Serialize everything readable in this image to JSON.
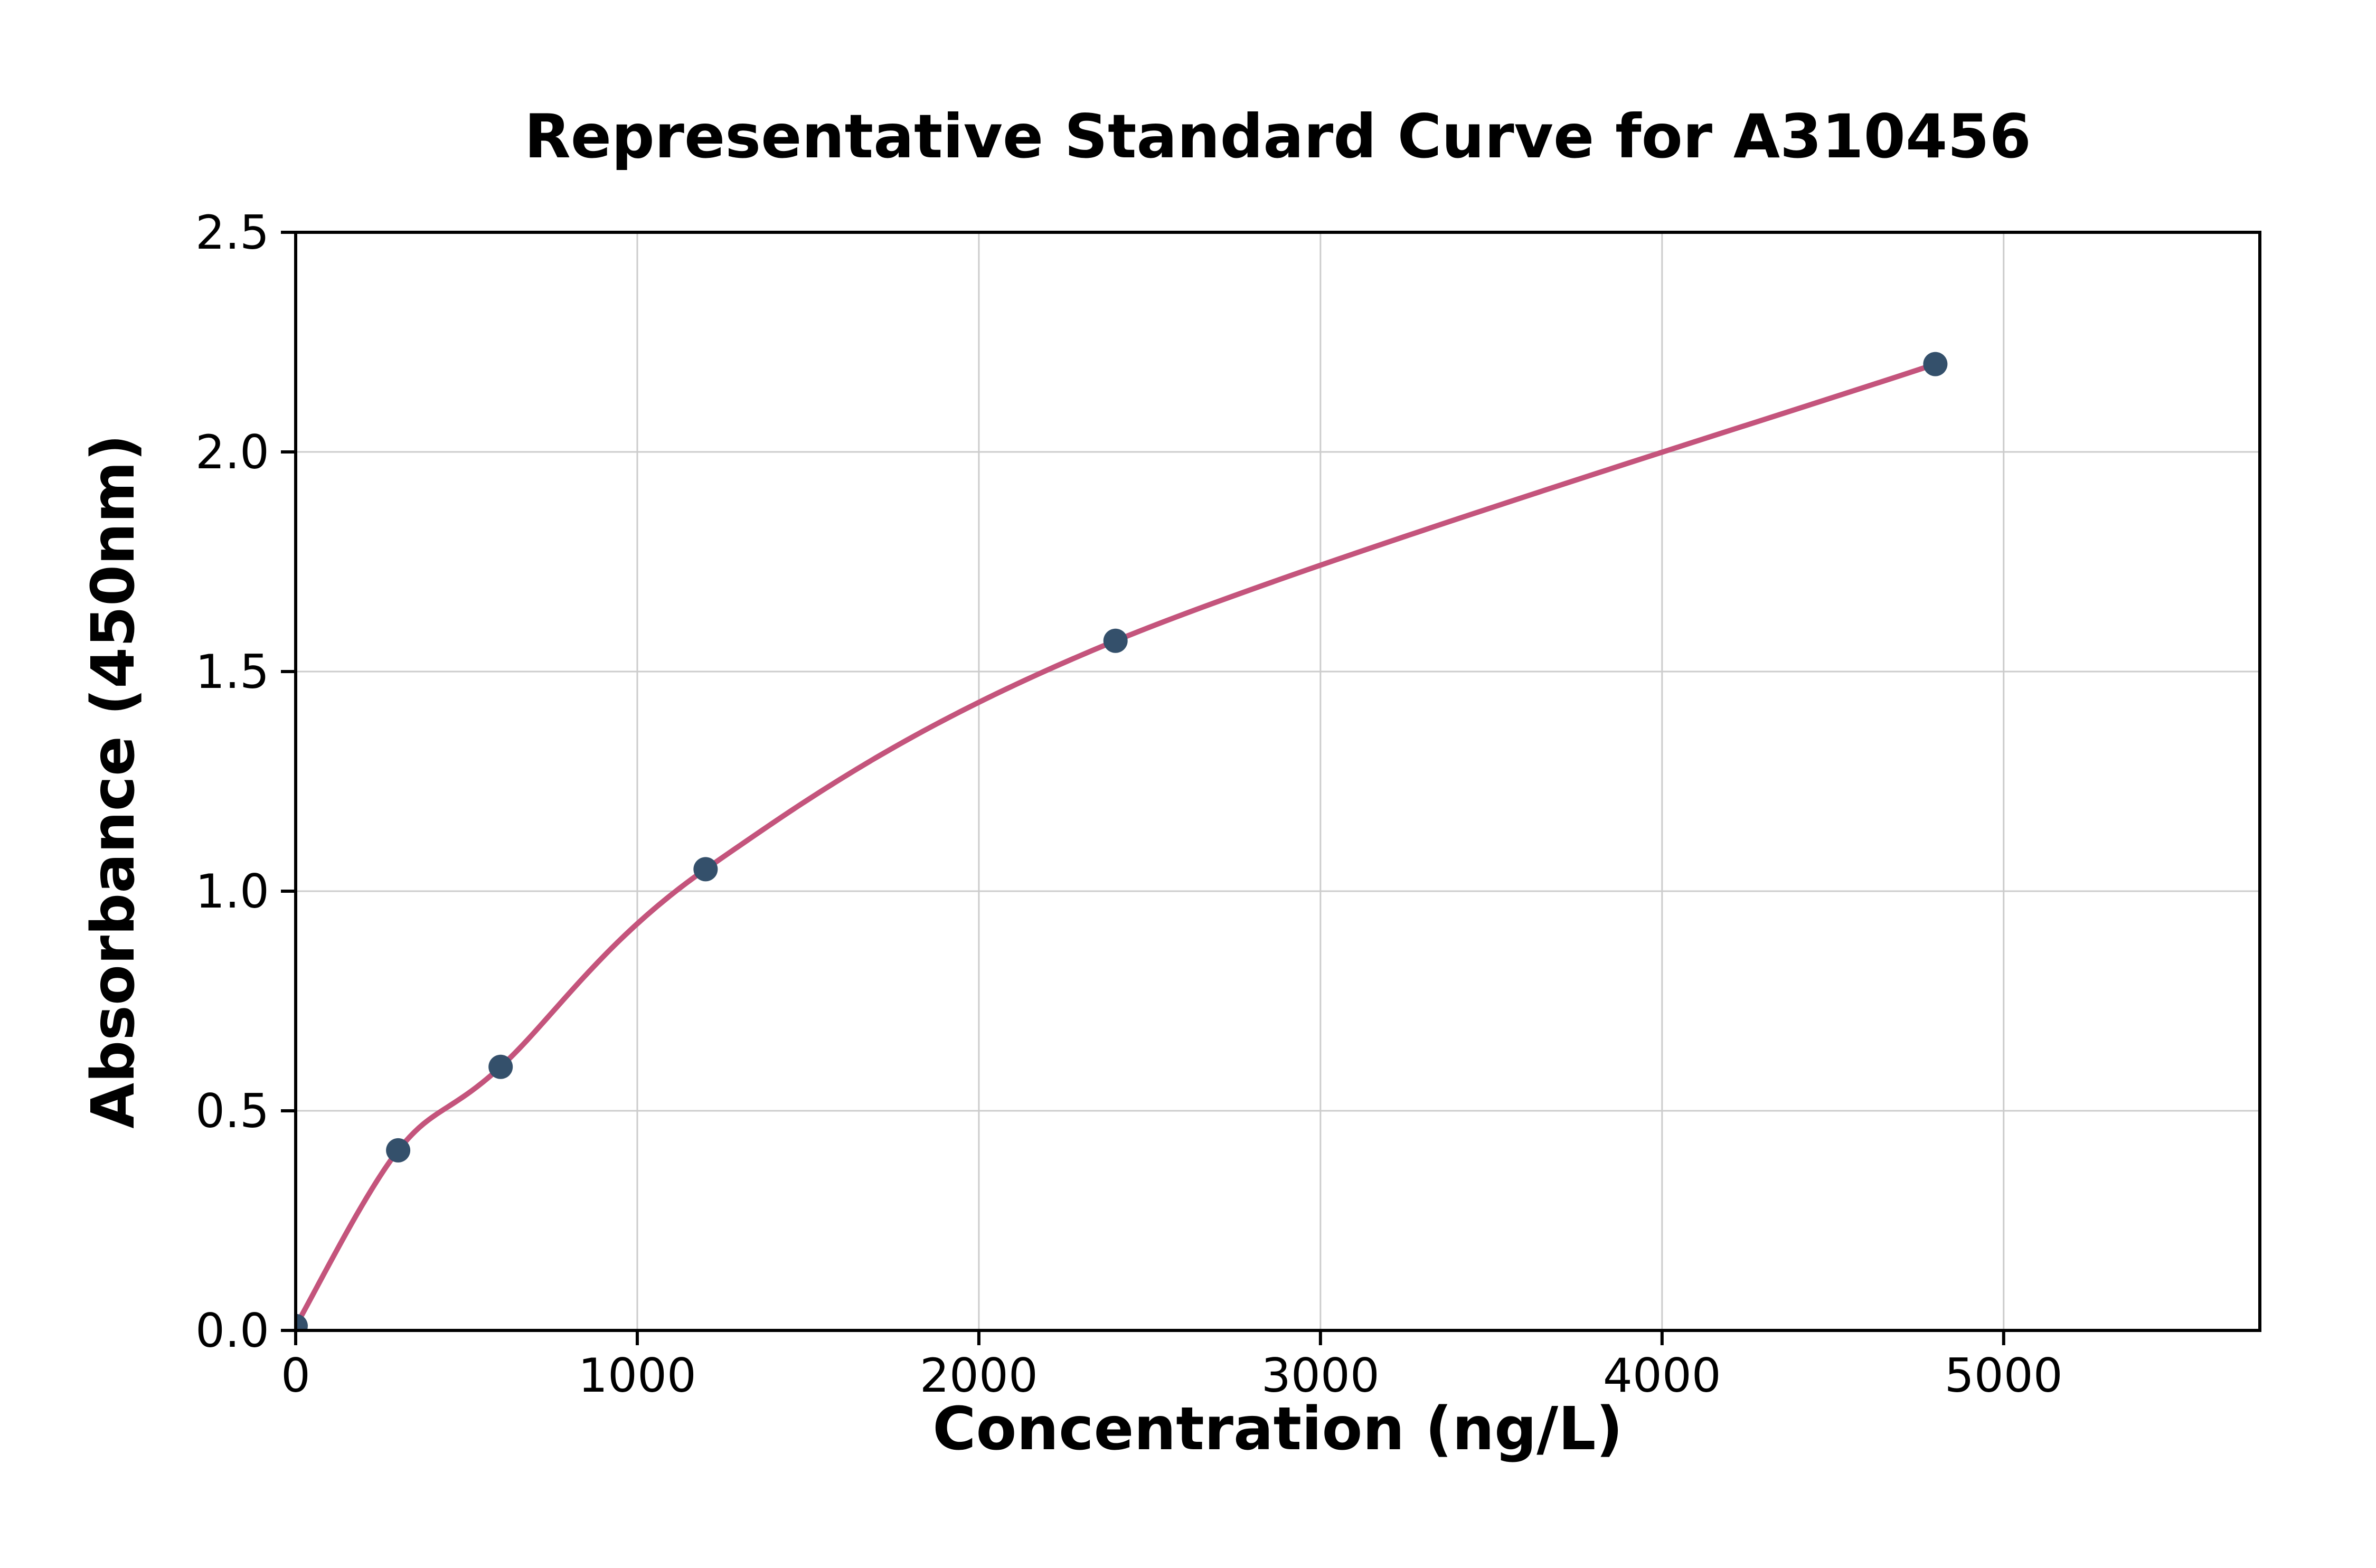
{
  "chart_data": {
    "type": "scatter",
    "title": "Representative Standard Curve for A310456",
    "xlabel": "Concentration (ng/L)",
    "ylabel": "Absorbance (450nm)",
    "x": [
      0,
      300,
      600,
      1200,
      2400,
      4800
    ],
    "y": [
      0.01,
      0.41,
      0.6,
      1.05,
      1.57,
      2.2
    ],
    "xlim": [
      0,
      5750
    ],
    "ylim": [
      0,
      2.5
    ],
    "x_ticks": [
      0,
      1000,
      2000,
      3000,
      4000,
      5000
    ],
    "x_tick_labels": [
      "0",
      "1000",
      "2000",
      "3000",
      "4000",
      "5000"
    ],
    "y_ticks": [
      0,
      0.5,
      1.0,
      1.5,
      2.0,
      2.5
    ],
    "y_tick_labels": [
      "0.0",
      "0.5",
      "1.0",
      "1.5",
      "2.0",
      "2.5"
    ],
    "grid": true,
    "legend_position": "none",
    "curve_color": "#c4547c",
    "point_color": "#34506b",
    "grid_color": "#cccccc",
    "axis_color": "#000000"
  }
}
